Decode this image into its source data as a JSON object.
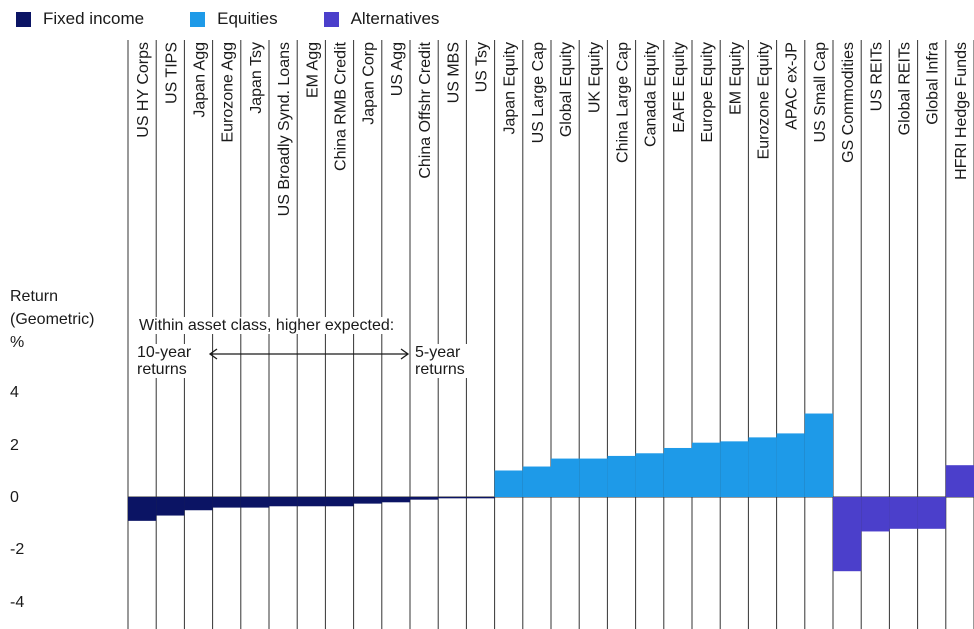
{
  "chart_data": {
    "type": "bar",
    "ylabel_lines": [
      "Return",
      "(Geometric)",
      "%"
    ],
    "annotation": "Within asset class, higher expected:",
    "annotation_left": [
      "10-year",
      "returns"
    ],
    "annotation_right": [
      "5-year",
      "returns"
    ],
    "ylim": [
      -4,
      4
    ],
    "yticks": [
      "4",
      "2",
      "0",
      "-2",
      "-4"
    ],
    "series": [
      {
        "name": "Fixed income",
        "color": "#0b1464",
        "categories": [
          "US HY Corps",
          "US TIPS",
          "Japan Agg",
          "Eurozone Agg",
          "Japan Tsy",
          "US Broadly Synd. Loans",
          "EM Agg",
          "China RMB Credit",
          "Japan Corp",
          "US Agg",
          "China Offshr Credit",
          "US MBS",
          "US Tsy"
        ],
        "values": [
          -0.9,
          -0.7,
          -0.5,
          -0.4,
          -0.4,
          -0.35,
          -0.35,
          -0.35,
          -0.25,
          -0.2,
          -0.1,
          -0.05,
          -0.05
        ]
      },
      {
        "name": "Equities",
        "color": "#1e9ae8",
        "categories": [
          "Japan Equity",
          "US Large Cap",
          "Global Equity",
          "UK Equity",
          "China Large Cap",
          "Canada Equity",
          "EAFE Equity",
          "Europe Equity",
          "EM Equity",
          "Eurozone Equity",
          "APAC ex-JP",
          "US Small Cap"
        ],
        "values": [
          1.0,
          1.15,
          1.45,
          1.45,
          1.55,
          1.65,
          1.85,
          2.05,
          2.1,
          2.25,
          2.4,
          3.15
        ]
      },
      {
        "name": "Alternatives",
        "color": "#4b3fcb",
        "categories": [
          "GS Commodities",
          "US REITs",
          "Global REITs",
          "Global Infra",
          "HFRI Hedge Funds"
        ],
        "values": [
          -2.8,
          -1.3,
          -1.2,
          -1.2,
          1.2
        ]
      }
    ]
  }
}
